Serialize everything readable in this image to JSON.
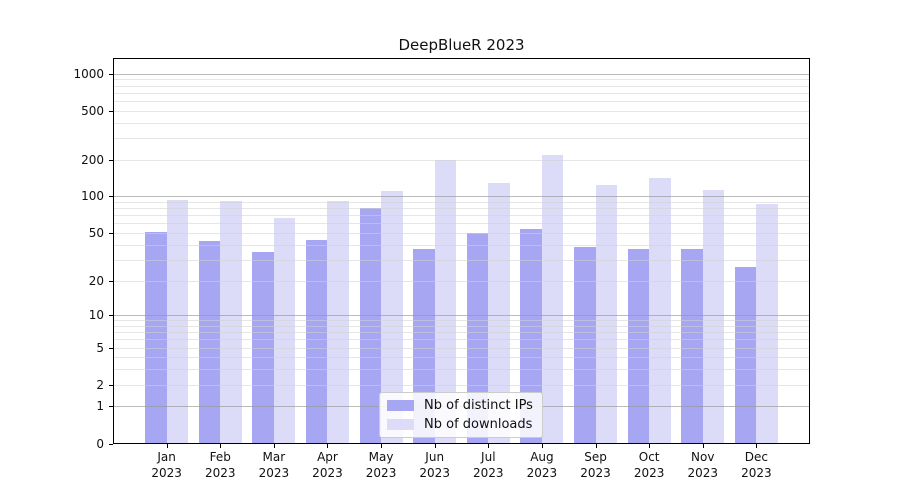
{
  "title": "DeepBlueR 2023",
  "chart_data": {
    "type": "bar",
    "title": "DeepBlueR 2023",
    "categories": [
      "Jan",
      "Feb",
      "Mar",
      "Apr",
      "May",
      "Jun",
      "Jul",
      "Aug",
      "Sep",
      "Oct",
      "Nov",
      "Dec"
    ],
    "x_tick_year": "2023",
    "series": [
      {
        "name": "Nb of distinct IPs",
        "color": "#a6a6f2",
        "values": [
          51,
          43,
          35,
          44,
          80,
          37,
          50,
          54,
          38,
          37,
          37,
          26
        ]
      },
      {
        "name": "Nb of downloads",
        "color": "#dcdcf9",
        "values": [
          94,
          92,
          67,
          91,
          110,
          199,
          128,
          220,
          124,
          142,
          112,
          87
        ]
      }
    ],
    "xlabel": "",
    "ylabel": "",
    "yscale": "log1p",
    "ylim": [
      0,
      1340
    ],
    "y_ticks": [
      0,
      1,
      2,
      5,
      10,
      20,
      50,
      100,
      200,
      500,
      1000
    ],
    "grid_major": [
      1,
      10,
      100,
      1000
    ],
    "grid_minor_subs": [
      2,
      3,
      4,
      5,
      6,
      7,
      8,
      9
    ],
    "grid": true,
    "legend_position": "inside-bottom-center"
  }
}
